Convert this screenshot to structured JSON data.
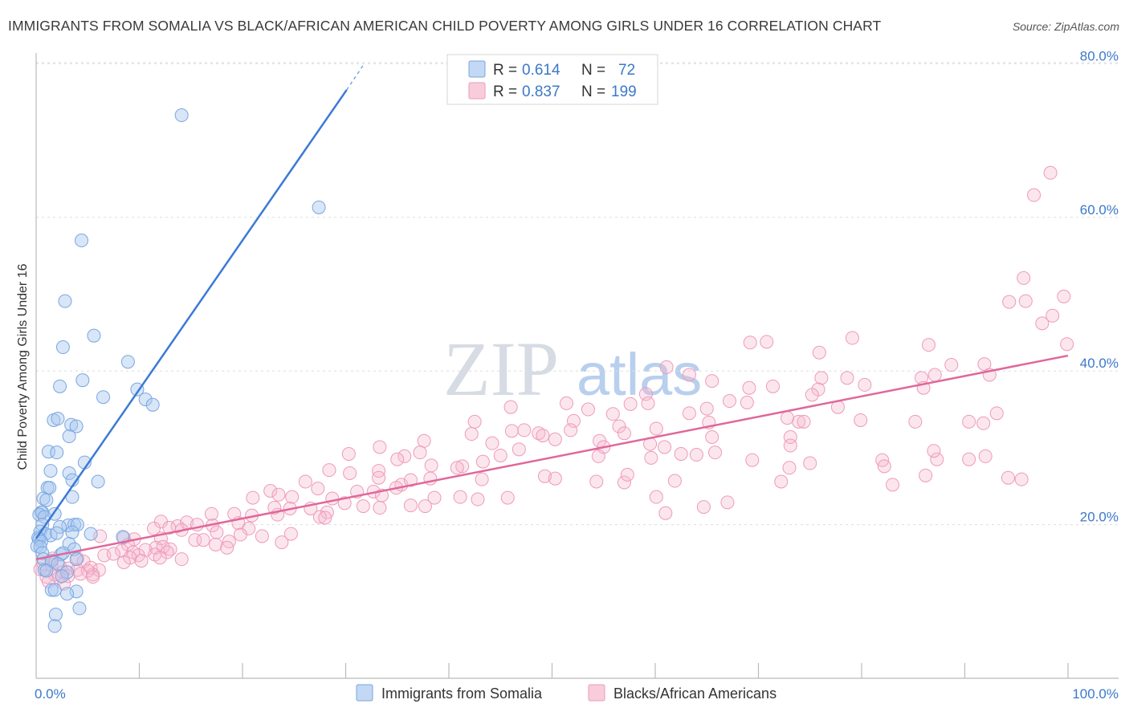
{
  "title": "IMMIGRANTS FROM SOMALIA VS BLACK/AFRICAN AMERICAN CHILD POVERTY AMONG GIRLS UNDER 16 CORRELATION CHART",
  "source": "Source: ZipAtlas.com",
  "watermark": {
    "zip": "ZIP",
    "atlas": "atlas"
  },
  "colors": {
    "blue": "#3b7ad6",
    "blue_fill": "rgba(168,199,240,0.45)",
    "blue_stroke": "#7aa6e0",
    "pink": "#e0679a",
    "pink_fill": "rgba(246,183,205,0.35)",
    "pink_stroke": "#ee9ab9",
    "value_text": "#3b78c9",
    "grid": "#dddddd"
  },
  "legend": {
    "rows": [
      {
        "r_label": "R =",
        "r_value": "0.614",
        "n_label": "N =",
        "n_value": "72"
      },
      {
        "r_label": "R =",
        "r_value": "0.837",
        "n_label": "N =",
        "n_value": "199"
      }
    ]
  },
  "chart_data": {
    "type": "scatter",
    "title": "IMMIGRANTS FROM SOMALIA VS BLACK/AFRICAN AMERICAN CHILD POVERTY AMONG GIRLS UNDER 16 CORRELATION CHART",
    "xlabel": "",
    "ylabel": "Child Poverty Among Girls Under 16",
    "xlim": [
      0,
      100
    ],
    "ylim": [
      0,
      80
    ],
    "x_tick_labels": [
      "0.0%",
      "100.0%"
    ],
    "y_ticks": [
      20,
      40,
      60,
      80
    ],
    "y_tick_labels": [
      "20.0%",
      "40.0%",
      "60.0%",
      "80.0%"
    ],
    "grid": true,
    "series": [
      {
        "name": "Immigrants from Somalia",
        "color": "blue",
        "R": 0.614,
        "N": 72,
        "trend": {
          "x": [
            0,
            30.1
          ],
          "y": [
            18.2,
            76.6
          ],
          "dash_to": [
            31.7,
            79.8
          ]
        },
        "points": [
          [
            14.1,
            73.3
          ],
          [
            27.4,
            61.3
          ],
          [
            4.4,
            57.0
          ],
          [
            2.8,
            49.1
          ],
          [
            5.6,
            44.6
          ],
          [
            2.6,
            43.1
          ],
          [
            8.9,
            41.2
          ],
          [
            2.3,
            38.0
          ],
          [
            4.5,
            38.8
          ],
          [
            6.5,
            36.6
          ],
          [
            9.8,
            37.6
          ],
          [
            10.6,
            36.3
          ],
          [
            11.3,
            35.6
          ],
          [
            1.7,
            33.6
          ],
          [
            2.1,
            33.8
          ],
          [
            3.4,
            33.0
          ],
          [
            3.9,
            32.8
          ],
          [
            3.2,
            31.5
          ],
          [
            1.2,
            29.5
          ],
          [
            2.0,
            29.4
          ],
          [
            4.7,
            28.1
          ],
          [
            1.4,
            27.0
          ],
          [
            3.2,
            26.7
          ],
          [
            3.5,
            25.8
          ],
          [
            6.0,
            25.6
          ],
          [
            1.1,
            24.8
          ],
          [
            1.3,
            24.8
          ],
          [
            3.5,
            23.6
          ],
          [
            0.7,
            23.4
          ],
          [
            1.0,
            23.2
          ],
          [
            0.5,
            21.6
          ],
          [
            0.6,
            21.6
          ],
          [
            0.3,
            21.3
          ],
          [
            1.8,
            21.4
          ],
          [
            0.8,
            21.0
          ],
          [
            0.6,
            20.0
          ],
          [
            3.1,
            19.9
          ],
          [
            3.7,
            20.0
          ],
          [
            2.3,
            19.7
          ],
          [
            4.0,
            20.0
          ],
          [
            0.4,
            19.1
          ],
          [
            0.9,
            18.8
          ],
          [
            1.4,
            18.6
          ],
          [
            2.0,
            18.9
          ],
          [
            3.5,
            19.0
          ],
          [
            5.3,
            18.8
          ],
          [
            8.4,
            18.4
          ],
          [
            0.2,
            18.3
          ],
          [
            0.3,
            18.1
          ],
          [
            0.5,
            17.8
          ],
          [
            3.2,
            17.5
          ],
          [
            0.1,
            17.2
          ],
          [
            0.4,
            17.1
          ],
          [
            3.7,
            16.8
          ],
          [
            0.6,
            16.3
          ],
          [
            2.4,
            16.1
          ],
          [
            2.6,
            16.3
          ],
          [
            0.7,
            15.5
          ],
          [
            1.5,
            15.3
          ],
          [
            3.9,
            15.5
          ],
          [
            2.1,
            14.9
          ],
          [
            0.8,
            14.1
          ],
          [
            1.0,
            14.0
          ],
          [
            3.0,
            13.8
          ],
          [
            2.5,
            13.3
          ],
          [
            1.5,
            11.5
          ],
          [
            1.8,
            11.5
          ],
          [
            3.9,
            11.3
          ],
          [
            3.0,
            11.0
          ],
          [
            4.2,
            9.1
          ],
          [
            1.9,
            8.3
          ],
          [
            1.8,
            6.8
          ]
        ]
      },
      {
        "name": "Blacks/African Americans",
        "color": "pink",
        "R": 0.837,
        "N": 199,
        "trend": {
          "x": [
            0,
            100
          ],
          "y": [
            15.5,
            42.0
          ]
        },
        "points": [
          [
            98.3,
            65.8
          ],
          [
            96.7,
            62.9
          ],
          [
            95.7,
            52.1
          ],
          [
            99.6,
            49.7
          ],
          [
            95.9,
            49.1
          ],
          [
            94.3,
            49.0
          ],
          [
            98.5,
            47.2
          ],
          [
            97.5,
            46.2
          ],
          [
            99.9,
            43.5
          ],
          [
            86.5,
            43.4
          ],
          [
            79.1,
            44.3
          ],
          [
            70.8,
            43.8
          ],
          [
            69.2,
            43.7
          ],
          [
            75.9,
            42.4
          ],
          [
            88.7,
            40.8
          ],
          [
            91.9,
            40.9
          ],
          [
            87.1,
            39.5
          ],
          [
            92.4,
            39.5
          ],
          [
            78.6,
            39.1
          ],
          [
            85.8,
            39.1
          ],
          [
            61.1,
            40.5
          ],
          [
            76.1,
            39.1
          ],
          [
            80.3,
            38.2
          ],
          [
            75.8,
            37.6
          ],
          [
            75.2,
            36.9
          ],
          [
            65.5,
            38.7
          ],
          [
            63.3,
            39.5
          ],
          [
            71.4,
            38.0
          ],
          [
            69.1,
            37.8
          ],
          [
            86.0,
            37.8
          ],
          [
            59.1,
            37.0
          ],
          [
            59.3,
            35.8
          ],
          [
            67.2,
            36.1
          ],
          [
            65.0,
            35.1
          ],
          [
            68.9,
            35.9
          ],
          [
            57.6,
            35.7
          ],
          [
            51.4,
            35.8
          ],
          [
            46.0,
            35.3
          ],
          [
            77.7,
            35.3
          ],
          [
            73.9,
            33.4
          ],
          [
            93.1,
            34.5
          ],
          [
            63.3,
            34.5
          ],
          [
            55.9,
            34.4
          ],
          [
            53.5,
            35.0
          ],
          [
            72.8,
            33.9
          ],
          [
            74.4,
            33.4
          ],
          [
            85.2,
            33.4
          ],
          [
            79.9,
            33.6
          ],
          [
            91.8,
            33.2
          ],
          [
            90.4,
            33.4
          ],
          [
            52.1,
            33.5
          ],
          [
            56.5,
            32.8
          ],
          [
            65.2,
            33.3
          ],
          [
            42.5,
            33.4
          ],
          [
            57.0,
            31.9
          ],
          [
            60.1,
            32.5
          ],
          [
            46.1,
            32.2
          ],
          [
            47.3,
            32.3
          ],
          [
            42.2,
            31.8
          ],
          [
            48.7,
            31.9
          ],
          [
            51.8,
            32.3
          ],
          [
            65.5,
            31.4
          ],
          [
            73.1,
            31.4
          ],
          [
            49.1,
            31.6
          ],
          [
            50.3,
            31.1
          ],
          [
            54.6,
            30.9
          ],
          [
            59.5,
            30.5
          ],
          [
            37.6,
            30.9
          ],
          [
            44.2,
            30.6
          ],
          [
            55.0,
            30.1
          ],
          [
            60.9,
            30.1
          ],
          [
            73.1,
            30.3
          ],
          [
            46.8,
            29.8
          ],
          [
            33.3,
            30.1
          ],
          [
            37.2,
            29.4
          ],
          [
            35.7,
            28.9
          ],
          [
            54.5,
            28.9
          ],
          [
            62.5,
            29.2
          ],
          [
            64.0,
            29.1
          ],
          [
            30.3,
            29.2
          ],
          [
            45.0,
            29.0
          ],
          [
            35.0,
            28.5
          ],
          [
            59.6,
            28.7
          ],
          [
            87.3,
            28.5
          ],
          [
            82.0,
            28.4
          ],
          [
            90.4,
            28.5
          ],
          [
            28.4,
            27.1
          ],
          [
            38.3,
            27.7
          ],
          [
            43.3,
            28.2
          ],
          [
            41.3,
            27.6
          ],
          [
            40.8,
            27.4
          ],
          [
            65.8,
            29.4
          ],
          [
            69.4,
            28.4
          ],
          [
            73.0,
            27.4
          ],
          [
            82.2,
            27.6
          ],
          [
            87.0,
            29.6
          ],
          [
            92.0,
            28.9
          ],
          [
            75.0,
            28.0
          ],
          [
            30.4,
            26.7
          ],
          [
            33.2,
            27.0
          ],
          [
            33.2,
            26.1
          ],
          [
            49.3,
            26.3
          ],
          [
            50.3,
            26.0
          ],
          [
            54.3,
            25.6
          ],
          [
            57.0,
            25.5
          ],
          [
            61.9,
            25.7
          ],
          [
            83.0,
            25.2
          ],
          [
            86.2,
            26.4
          ],
          [
            94.2,
            26.1
          ],
          [
            95.5,
            25.9
          ],
          [
            72.2,
            25.6
          ],
          [
            57.3,
            26.5
          ],
          [
            43.2,
            25.9
          ],
          [
            38.2,
            26.0
          ],
          [
            35.4,
            25.2
          ],
          [
            36.3,
            25.8
          ],
          [
            34.9,
            24.8
          ],
          [
            31.1,
            24.3
          ],
          [
            32.7,
            24.3
          ],
          [
            26.1,
            25.6
          ],
          [
            27.3,
            24.7
          ],
          [
            22.7,
            24.4
          ],
          [
            23.5,
            23.9
          ],
          [
            24.8,
            23.6
          ],
          [
            28.7,
            23.4
          ],
          [
            33.5,
            23.8
          ],
          [
            38.6,
            23.5
          ],
          [
            41.1,
            23.6
          ],
          [
            45.7,
            23.5
          ],
          [
            42.8,
            23.3
          ],
          [
            21.0,
            23.5
          ],
          [
            29.9,
            22.8
          ],
          [
            36.3,
            22.5
          ],
          [
            37.7,
            22.4
          ],
          [
            24.6,
            22.1
          ],
          [
            26.6,
            22.1
          ],
          [
            31.7,
            22.4
          ],
          [
            33.3,
            22.2
          ],
          [
            28.2,
            21.6
          ],
          [
            23.4,
            21.3
          ],
          [
            19.2,
            21.4
          ],
          [
            20.9,
            21.2
          ],
          [
            23.1,
            22.2
          ],
          [
            17.0,
            21.4
          ],
          [
            27.5,
            21.0
          ],
          [
            28.0,
            20.9
          ],
          [
            19.6,
            20.2
          ],
          [
            12.1,
            20.4
          ],
          [
            13.7,
            19.8
          ],
          [
            14.6,
            20.3
          ],
          [
            15.6,
            20.0
          ],
          [
            17.1,
            19.9
          ],
          [
            20.6,
            19.5
          ],
          [
            11.4,
            19.5
          ],
          [
            12.9,
            19.6
          ],
          [
            14.1,
            19.3
          ],
          [
            17.5,
            19.0
          ],
          [
            19.8,
            18.7
          ],
          [
            21.9,
            18.5
          ],
          [
            24.7,
            18.8
          ],
          [
            8.5,
            18.3
          ],
          [
            9.5,
            18.1
          ],
          [
            12.1,
            18.2
          ],
          [
            15.4,
            18.0
          ],
          [
            16.2,
            18.0
          ],
          [
            18.7,
            17.8
          ],
          [
            23.8,
            17.7
          ],
          [
            8.9,
            17.4
          ],
          [
            11.6,
            17.0
          ],
          [
            12.3,
            17.1
          ],
          [
            13.0,
            16.8
          ],
          [
            17.4,
            17.4
          ],
          [
            18.5,
            17.0
          ],
          [
            10.6,
            16.7
          ],
          [
            8.3,
            16.6
          ],
          [
            9.4,
            16.4
          ],
          [
            12.7,
            16.4
          ],
          [
            9.9,
            16.0
          ],
          [
            11.5,
            16.1
          ],
          [
            6.6,
            16.0
          ],
          [
            7.5,
            16.2
          ],
          [
            9.1,
            15.7
          ],
          [
            10.2,
            15.3
          ],
          [
            12.0,
            15.7
          ],
          [
            14.1,
            15.5
          ],
          [
            4.0,
            15.6
          ],
          [
            1.6,
            15.6
          ],
          [
            4.6,
            15.2
          ],
          [
            8.5,
            15.1
          ],
          [
            0.7,
            14.9
          ],
          [
            1.5,
            14.8
          ],
          [
            2.3,
            14.6
          ],
          [
            3.1,
            14.3
          ],
          [
            4.0,
            14.1
          ],
          [
            5.3,
            14.4
          ],
          [
            6.1,
            14.1
          ],
          [
            0.4,
            14.2
          ],
          [
            2.6,
            13.8
          ],
          [
            1.8,
            13.5
          ],
          [
            3.1,
            13.3
          ],
          [
            5.5,
            13.5
          ],
          [
            5.0,
            14.0
          ],
          [
            4.3,
            13.6
          ],
          [
            5.5,
            13.2
          ],
          [
            1.0,
            13.2
          ],
          [
            2.2,
            13.1
          ],
          [
            1.2,
            12.6
          ],
          [
            2.7,
            12.3
          ],
          [
            6.2,
            18.5
          ],
          [
            61.0,
            21.5
          ],
          [
            60.1,
            23.6
          ],
          [
            64.7,
            22.3
          ],
          [
            67.0,
            22.9
          ]
        ]
      }
    ]
  },
  "bottom_legend": {
    "items": [
      {
        "label": "Immigrants from Somalia"
      },
      {
        "label": "Blacks/African Americans"
      }
    ]
  }
}
